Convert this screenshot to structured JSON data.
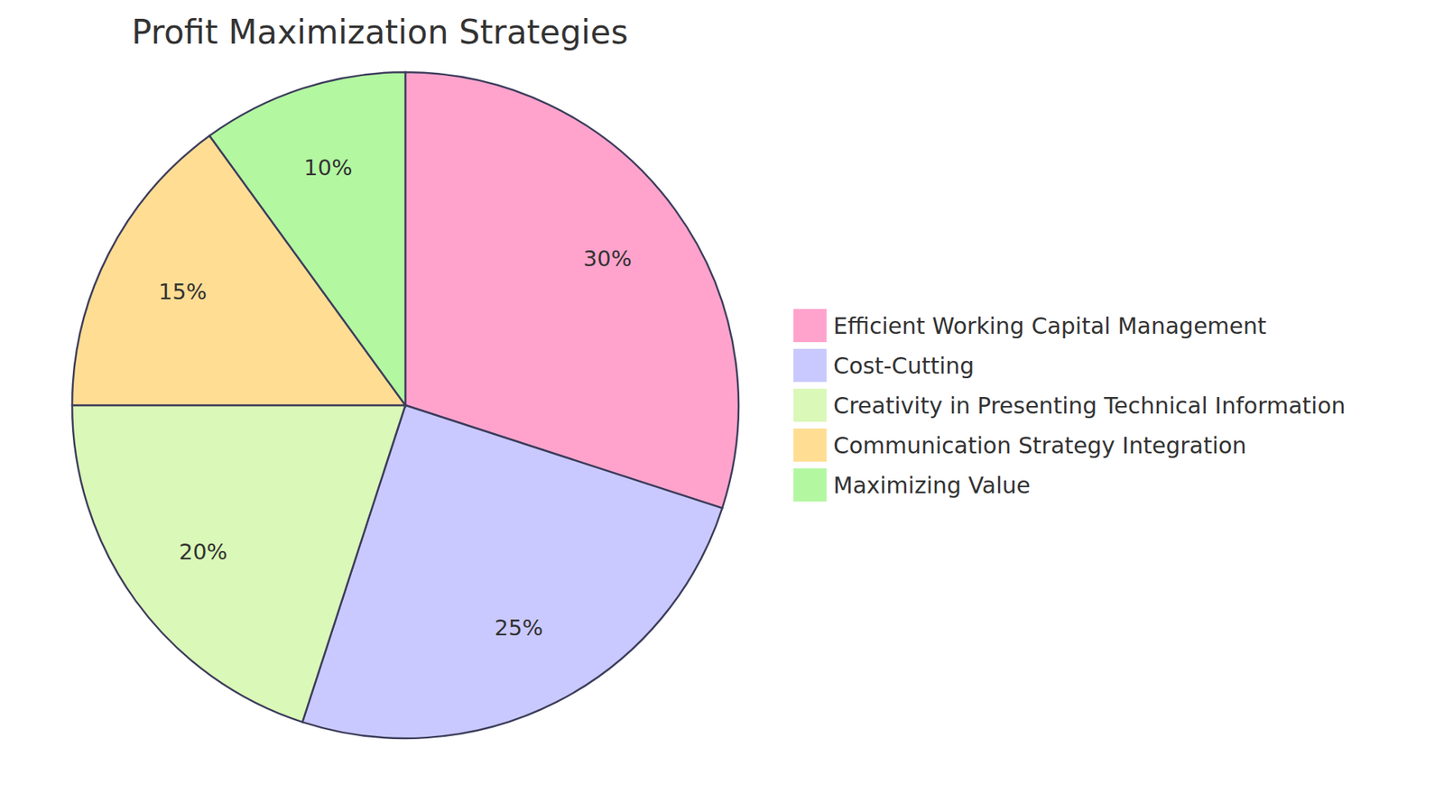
{
  "chart_data": {
    "type": "pie",
    "title": "Profit Maximization Strategies",
    "categories": [
      "Efficient Working Capital Management",
      "Cost-Cutting",
      "Creativity in Presenting Technical Information",
      "Communication Strategy Integration",
      "Maximizing Value"
    ],
    "values": [
      30,
      25,
      20,
      15,
      10
    ],
    "value_labels": [
      "30%",
      "25%",
      "20%",
      "15%",
      "10%"
    ],
    "colors": [
      "#ffa3cc",
      "#c9c9ff",
      "#daf8b7",
      "#ffdd93",
      "#b3f7a1"
    ],
    "data_labels": true,
    "legend": "right"
  }
}
